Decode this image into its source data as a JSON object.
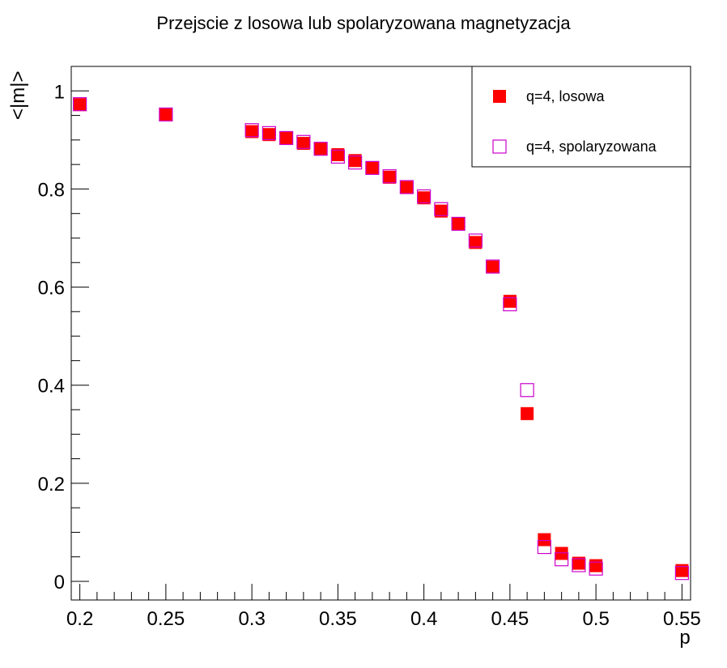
{
  "chart_data": {
    "type": "scatter",
    "title": "Przejscie z losowa lub spolaryzowana magnetyzacja",
    "xlabel": "p",
    "ylabel": "<|m|>",
    "xlim": [
      0.195,
      0.555
    ],
    "ylim": [
      -0.038,
      1.05
    ],
    "x_ticks": [
      {
        "value": 0.2,
        "label": "0.2"
      },
      {
        "value": 0.25,
        "label": "0.25"
      },
      {
        "value": 0.3,
        "label": "0.3"
      },
      {
        "value": 0.35,
        "label": "0.35"
      },
      {
        "value": 0.4,
        "label": "0.4"
      },
      {
        "value": 0.45,
        "label": "0.45"
      },
      {
        "value": 0.5,
        "label": "0.5"
      },
      {
        "value": 0.55,
        "label": "0.55"
      }
    ],
    "y_ticks": [
      {
        "value": 0,
        "label": "0"
      },
      {
        "value": 0.2,
        "label": "0.2"
      },
      {
        "value": 0.4,
        "label": "0.4"
      },
      {
        "value": 0.6,
        "label": "0.6"
      },
      {
        "value": 0.8,
        "label": "0.8"
      },
      {
        "value": 1,
        "label": "1"
      }
    ],
    "grid": false,
    "legend_position": "top-right",
    "series": [
      {
        "name": "q=4, losowa",
        "marker": "filled-square",
        "color": "#ff0000",
        "x": [
          0.2,
          0.25,
          0.3,
          0.31,
          0.32,
          0.33,
          0.34,
          0.35,
          0.36,
          0.37,
          0.38,
          0.39,
          0.4,
          0.41,
          0.42,
          0.43,
          0.44,
          0.45,
          0.46,
          0.47,
          0.48,
          0.49,
          0.5,
          0.55
        ],
        "y": [
          0.972,
          0.951,
          0.917,
          0.911,
          0.903,
          0.893,
          0.882,
          0.87,
          0.858,
          0.843,
          0.824,
          0.803,
          0.782,
          0.755,
          0.729,
          0.691,
          0.641,
          0.571,
          0.342,
          0.085,
          0.057,
          0.037,
          0.032,
          0.022
        ]
      },
      {
        "name": "q=4, spolaryzowana",
        "marker": "open-square",
        "color": "#cc00cc",
        "x": [
          0.2,
          0.25,
          0.3,
          0.31,
          0.32,
          0.33,
          0.34,
          0.35,
          0.36,
          0.37,
          0.38,
          0.39,
          0.4,
          0.41,
          0.42,
          0.43,
          0.44,
          0.45,
          0.46,
          0.47,
          0.48,
          0.49,
          0.5,
          0.55
        ],
        "y": [
          0.973,
          0.952,
          0.92,
          0.914,
          0.904,
          0.896,
          0.882,
          0.866,
          0.854,
          0.843,
          0.826,
          0.804,
          0.785,
          0.759,
          0.729,
          0.695,
          0.642,
          0.565,
          0.39,
          0.07,
          0.045,
          0.033,
          0.026,
          0.017
        ]
      }
    ]
  }
}
